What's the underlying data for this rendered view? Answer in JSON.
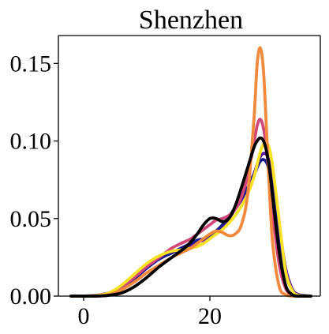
{
  "chart_data": {
    "type": "line",
    "title": "Shenzhen",
    "xlabel": "",
    "ylabel": "",
    "xlim": [
      -4,
      37.5
    ],
    "ylim": [
      0,
      0.168
    ],
    "xticks": [
      0,
      20
    ],
    "xtick_labels": [
      "0",
      "20"
    ],
    "yticks": [
      0,
      0.05,
      0.1,
      0.15
    ],
    "ytick_labels": [
      "0.00",
      "0.05",
      "0.10",
      "0.15"
    ],
    "grid": false,
    "legend": "none",
    "x": [
      -2,
      0,
      2,
      4,
      6,
      8,
      10,
      12,
      14,
      16,
      17,
      18,
      19,
      20,
      21,
      22,
      23,
      24,
      25,
      26,
      27,
      27.5,
      28,
      28.5,
      29,
      29.5,
      30,
      31,
      32,
      33,
      34,
      36
    ],
    "series": [
      {
        "color": "#5b0f9e",
        "values": [
          0,
          0,
          0.0005,
          0.002,
          0.006,
          0.012,
          0.019,
          0.024,
          0.028,
          0.031,
          0.033,
          0.035,
          0.036,
          0.038,
          0.041,
          0.045,
          0.05,
          0.056,
          0.062,
          0.07,
          0.079,
          0.085,
          0.09,
          0.092,
          0.091,
          0.085,
          0.074,
          0.045,
          0.018,
          0.005,
          0.001,
          0
        ]
      },
      {
        "color": "#1a1a8c",
        "values": [
          0,
          0,
          0.0003,
          0.0015,
          0.005,
          0.011,
          0.018,
          0.024,
          0.028,
          0.032,
          0.034,
          0.036,
          0.037,
          0.039,
          0.042,
          0.046,
          0.051,
          0.057,
          0.063,
          0.07,
          0.078,
          0.083,
          0.087,
          0.088,
          0.086,
          0.079,
          0.068,
          0.04,
          0.015,
          0.004,
          0.0005,
          0
        ]
      },
      {
        "color": "#d1477a",
        "values": [
          0,
          0,
          0.0004,
          0.002,
          0.006,
          0.012,
          0.019,
          0.025,
          0.031,
          0.035,
          0.037,
          0.04,
          0.043,
          0.046,
          0.049,
          0.05,
          0.052,
          0.056,
          0.064,
          0.078,
          0.099,
          0.11,
          0.114,
          0.108,
          0.094,
          0.074,
          0.052,
          0.02,
          0.005,
          0.001,
          0,
          0
        ]
      },
      {
        "color": "#f7e225",
        "values": [
          0,
          0,
          0.0003,
          0.002,
          0.007,
          0.014,
          0.021,
          0.026,
          0.029,
          0.03,
          0.031,
          0.032,
          0.034,
          0.037,
          0.04,
          0.043,
          0.047,
          0.052,
          0.058,
          0.066,
          0.077,
          0.085,
          0.093,
          0.098,
          0.099,
          0.094,
          0.082,
          0.048,
          0.016,
          0.004,
          0.0005,
          0
        ]
      },
      {
        "color": "#f28a3d",
        "values": [
          0,
          0,
          0,
          0.001,
          0.004,
          0.009,
          0.015,
          0.02,
          0.025,
          0.029,
          0.031,
          0.034,
          0.037,
          0.04,
          0.042,
          0.041,
          0.039,
          0.04,
          0.046,
          0.066,
          0.115,
          0.15,
          0.16,
          0.145,
          0.105,
          0.063,
          0.032,
          0.006,
          0.001,
          0,
          0,
          0
        ]
      },
      {
        "color": "#000000",
        "values": [
          0,
          0,
          0,
          0.0005,
          0.002,
          0.006,
          0.012,
          0.019,
          0.025,
          0.031,
          0.035,
          0.04,
          0.046,
          0.05,
          0.05,
          0.048,
          0.05,
          0.058,
          0.07,
          0.083,
          0.096,
          0.1,
          0.102,
          0.1,
          0.093,
          0.08,
          0.062,
          0.028,
          0.007,
          0.001,
          0,
          0
        ]
      }
    ]
  }
}
